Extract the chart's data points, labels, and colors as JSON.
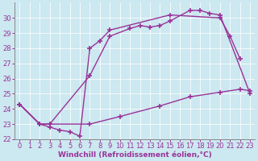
{
  "line1_x": [
    0,
    2,
    3,
    7,
    9,
    11,
    12,
    13,
    14,
    15,
    17,
    18,
    19,
    20,
    23
  ],
  "line1_y": [
    24.3,
    23.0,
    23.0,
    26.2,
    28.8,
    29.3,
    29.5,
    29.4,
    29.5,
    29.8,
    30.5,
    30.5,
    30.3,
    30.2,
    25.0
  ],
  "line2_x": [
    0,
    2,
    3,
    4,
    5,
    6,
    7,
    8,
    9,
    15,
    20,
    21,
    22
  ],
  "line2_y": [
    24.3,
    23.0,
    22.8,
    22.6,
    22.5,
    22.2,
    28.0,
    28.5,
    29.2,
    30.2,
    30.0,
    28.8,
    27.3
  ],
  "line3_x": [
    0,
    2,
    7,
    10,
    14,
    17,
    20,
    22,
    23
  ],
  "line3_y": [
    24.3,
    23.0,
    23.0,
    23.5,
    24.2,
    24.8,
    25.1,
    25.3,
    25.2
  ],
  "line_color": "#993399",
  "bg_color": "#cce8f0",
  "grid_color": "#b0d8e8",
  "xlabel": "Windchill (Refroidissement éolien,°C)",
  "ylim": [
    22,
    31
  ],
  "xlim": [
    -0.5,
    23.5
  ],
  "yticks": [
    22,
    23,
    24,
    25,
    26,
    27,
    28,
    29,
    30
  ],
  "xticks": [
    0,
    1,
    2,
    3,
    4,
    5,
    6,
    7,
    8,
    9,
    10,
    11,
    12,
    13,
    14,
    15,
    16,
    17,
    18,
    19,
    20,
    21,
    22,
    23
  ],
  "marker": "+",
  "markersize": 5,
  "linewidth": 1.0,
  "xlabel_fontsize": 6.5,
  "tick_fontsize": 6.0,
  "tick_color": "#993399",
  "label_color": "#993399",
  "spine_color": "#888888"
}
